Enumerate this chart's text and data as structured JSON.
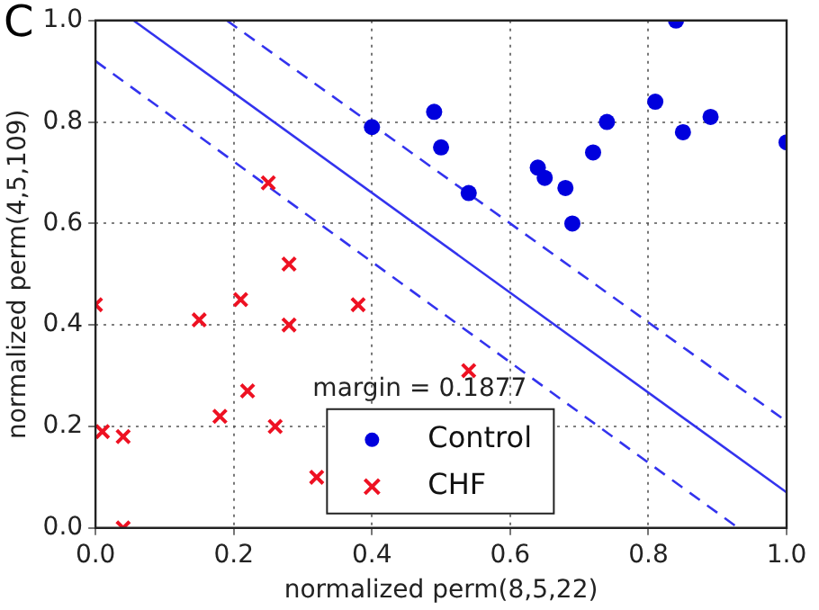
{
  "chart_data": {
    "type": "scatter",
    "title": "C",
    "xlabel": "normalized perm(8,5,22)",
    "ylabel": "normalized perm(4,5,109)",
    "annotations": [
      "margin = 0.1877"
    ],
    "xlim": [
      0,
      1
    ],
    "ylim": [
      0,
      1
    ],
    "xticks": [
      {
        "value": 0,
        "label": "0.0"
      },
      0.2,
      0.4,
      0.6,
      0.8,
      {
        "value": 1,
        "label": "1.0"
      }
    ],
    "yticks": [
      {
        "value": 0,
        "label": "0.0"
      },
      0.2,
      0.4,
      0.6,
      0.8,
      {
        "value": 1,
        "label": "1.0"
      }
    ],
    "grid": true,
    "legend": "bottom",
    "series": [
      {
        "name": "Control",
        "color": "#0000dd",
        "marker": "circle",
        "x": [
          0.4,
          0.49,
          0.5,
          0.54,
          0.64,
          0.65,
          0.68,
          0.69,
          0.72,
          0.74,
          0.81,
          0.84,
          0.85,
          0.89,
          1.0
        ],
        "values": [
          0.79,
          0.82,
          0.75,
          0.66,
          0.71,
          0.69,
          0.67,
          0.6,
          0.74,
          0.8,
          0.84,
          1.0,
          0.78,
          0.81,
          0.76
        ]
      },
      {
        "name": "CHF",
        "color": "#ee1122",
        "marker": "cross",
        "x": [
          0.25,
          0.28,
          0.0,
          0.21,
          0.15,
          0.28,
          0.38,
          0.54,
          0.22,
          0.18,
          0.26,
          0.01,
          0.04,
          0.32,
          0.04
        ],
        "values": [
          0.68,
          0.52,
          0.44,
          0.45,
          0.41,
          0.4,
          0.44,
          0.31,
          0.27,
          0.22,
          0.2,
          0.19,
          0.18,
          0.1,
          0.0
        ]
      },
      {
        "type": "line",
        "color": "#3333ee",
        "marker": "none",
        "line_style": "solid",
        "x": [
          0.055,
          1.0
        ],
        "values": [
          1.0,
          0.07
        ]
      },
      {
        "type": "line",
        "color": "#3333ee",
        "marker": "none",
        "line_style": "dashed",
        "x": [
          0.19,
          1.0
        ],
        "values": [
          1.0,
          0.21
        ]
      },
      {
        "type": "line",
        "color": "#3333ee",
        "marker": "none",
        "line_style": "dashed",
        "x": [
          0.0,
          0.93
        ],
        "values": [
          0.92,
          0.0
        ]
      }
    ]
  }
}
